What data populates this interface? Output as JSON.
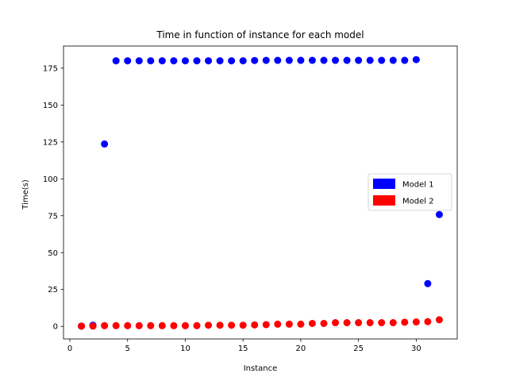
{
  "chart_data": {
    "type": "scatter",
    "title": "Time in function of instance for each model",
    "xlabel": "Instance",
    "ylabel": "Time(s)",
    "xlim": [
      -0.55,
      33.55
    ],
    "ylim": [
      -8.5,
      190
    ],
    "xticks": [
      0,
      5,
      10,
      15,
      20,
      25,
      30
    ],
    "yticks": [
      0,
      25,
      50,
      75,
      100,
      125,
      150,
      175
    ],
    "legend_position": "center-right",
    "series": [
      {
        "name": "Model 1",
        "color": "#0000ff",
        "x": [
          1,
          2,
          3,
          4,
          5,
          6,
          7,
          8,
          9,
          10,
          11,
          12,
          13,
          14,
          15,
          16,
          17,
          18,
          19,
          20,
          21,
          22,
          23,
          24,
          25,
          26,
          27,
          28,
          29,
          30,
          31,
          32
        ],
        "y": [
          0.2,
          0.8,
          123.6,
          180.0,
          180.0,
          180.0,
          180.0,
          180.0,
          180.0,
          180.0,
          180.0,
          180.0,
          180.0,
          180.0,
          180.0,
          180.2,
          180.3,
          180.3,
          180.3,
          180.3,
          180.3,
          180.3,
          180.3,
          180.3,
          180.3,
          180.3,
          180.3,
          180.3,
          180.3,
          180.8,
          29.0,
          75.8
        ]
      },
      {
        "name": "Model 2",
        "color": "#ff0000",
        "x": [
          1,
          2,
          3,
          4,
          5,
          6,
          7,
          8,
          9,
          10,
          11,
          12,
          13,
          14,
          15,
          16,
          17,
          18,
          19,
          20,
          21,
          22,
          23,
          24,
          25,
          26,
          27,
          28,
          29,
          30,
          31,
          32
        ],
        "y": [
          0.2,
          0.2,
          0.5,
          0.5,
          0.5,
          0.5,
          0.5,
          0.5,
          0.5,
          0.5,
          0.5,
          0.8,
          0.8,
          0.8,
          0.8,
          1.0,
          1.2,
          1.5,
          1.5,
          1.5,
          2.0,
          2.0,
          2.5,
          2.5,
          2.5,
          2.5,
          2.5,
          2.5,
          2.8,
          3.0,
          3.2,
          4.5
        ]
      }
    ]
  }
}
